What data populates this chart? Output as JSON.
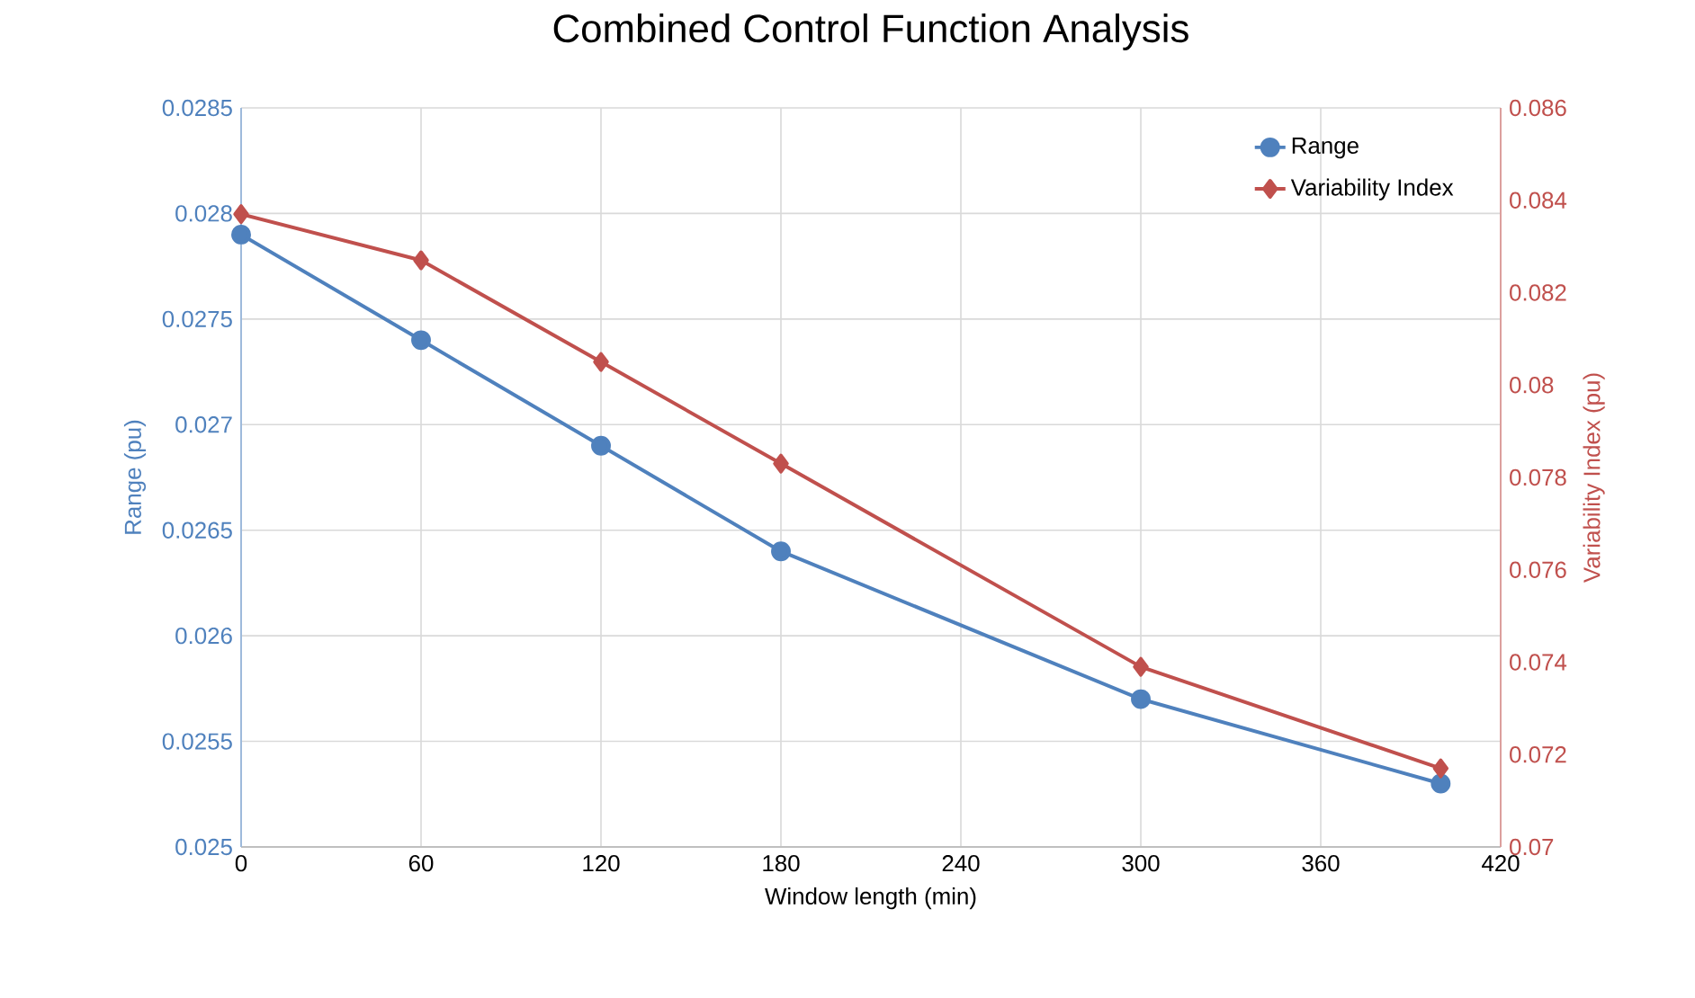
{
  "chart_data": {
    "type": "line",
    "title": "Combined Control Function Analysis",
    "xlabel": "Window length (min)",
    "ylabel": "Range (pu)",
    "y2label": "Variability Index (pu)",
    "x": [
      0,
      60,
      120,
      180,
      300,
      400
    ],
    "series": [
      {
        "name": "Range",
        "color": "#4f81bd",
        "values": [
          0.0279,
          0.0274,
          0.0269,
          0.0264,
          0.0257,
          0.0253
        ],
        "marker": "circle"
      },
      {
        "name": "Variability Index",
        "color": "#c0504d",
        "values": [
          0.0837,
          0.0827,
          0.0805,
          0.0783,
          0.0739,
          0.0717
        ],
        "marker": "diamond",
        "axis": "y2"
      }
    ],
    "xlim": [
      0,
      420
    ],
    "xticks": [
      0,
      60,
      120,
      180,
      240,
      300,
      360,
      420
    ],
    "ylim": [
      0.025,
      0.0285
    ],
    "yticks": [
      0.025,
      0.0255,
      0.026,
      0.0265,
      0.027,
      0.0275,
      0.028,
      0.0285
    ],
    "y2lim": [
      0.07,
      0.086
    ],
    "y2ticks": [
      0.07,
      0.072,
      0.074,
      0.076,
      0.078,
      0.08,
      0.082,
      0.084,
      0.086
    ],
    "grid": true,
    "legend": "top right",
    "line_style": "solid"
  }
}
